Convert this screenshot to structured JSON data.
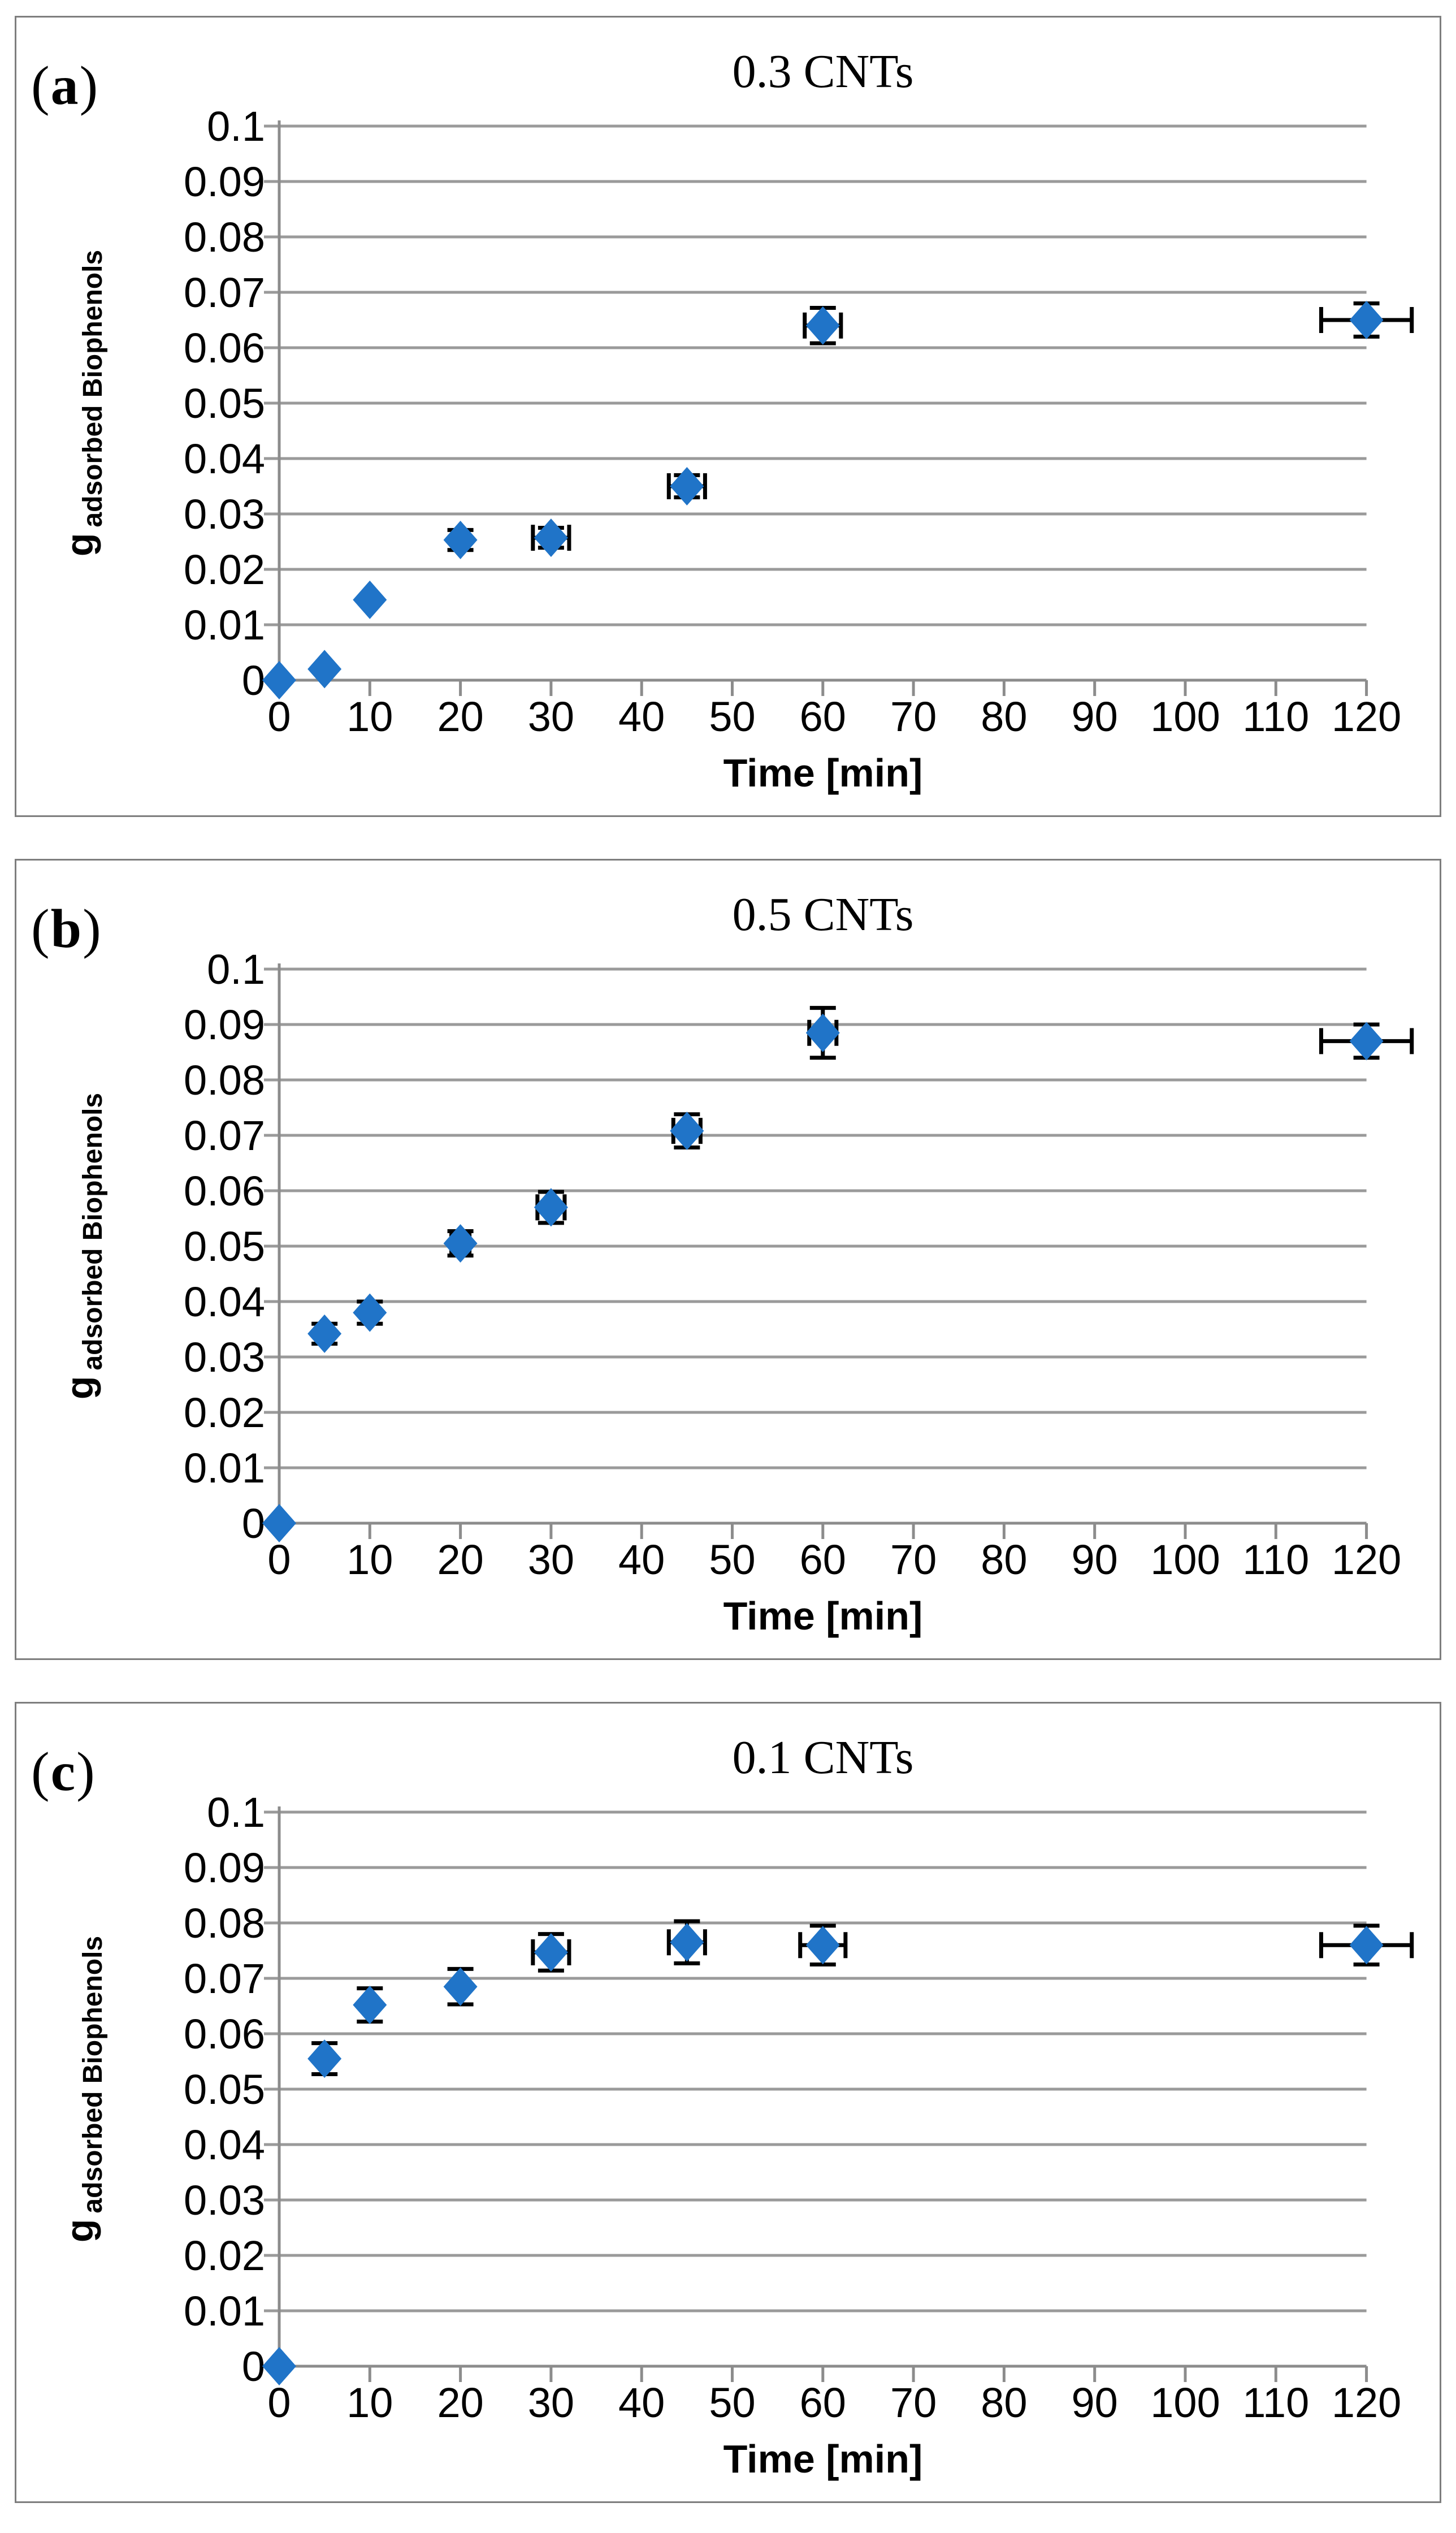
{
  "figure": {
    "panels": [
      {
        "paren_open": "(",
        "letter": "a",
        "paren_close": ")",
        "y_label_main": "g",
        "y_label_sub": "adsorbed Biophenols"
      },
      {
        "paren_open": "(",
        "letter": "b",
        "paren_close": ")",
        "y_label_main": "g",
        "y_label_sub": "adsorbed Biophenols"
      },
      {
        "paren_open": "(",
        "letter": "c",
        "paren_close": ")",
        "y_label_main": "g",
        "y_label_sub": "adsorbed Biophenols"
      }
    ]
  },
  "style": {
    "marker_color": "#2074c8",
    "grid_color": "#9a9a9a",
    "axis_color": "#8c8c8c",
    "error_bar_color": "#000000",
    "panel_border_color": "#7e7e7e",
    "text_color": "#000000"
  },
  "chart_data": [
    {
      "type": "scatter",
      "title": "0.3 CNTs",
      "xlabel": "Time [min]",
      "ylabel": "g adsorbed Biophenols",
      "xlim": [
        0,
        120
      ],
      "ylim": [
        0,
        0.1
      ],
      "grid": true,
      "legend": false,
      "x_ticks": [
        0,
        10,
        20,
        30,
        40,
        50,
        60,
        70,
        80,
        90,
        100,
        110,
        120
      ],
      "y_ticks": [
        0,
        0.01,
        0.02,
        0.03,
        0.04,
        0.05,
        0.06,
        0.07,
        0.08,
        0.09,
        0.1
      ],
      "y_tick_labels": [
        "0",
        "0.01",
        "0.02",
        "0.03",
        "0.04",
        "0.05",
        "0.06",
        "0.07",
        "0.08",
        "0.09",
        "0.1"
      ],
      "points": [
        {
          "x": 0,
          "y": 0,
          "yerr": 0,
          "xerr": 0
        },
        {
          "x": 5,
          "y": 0.002,
          "yerr": 0,
          "xerr": 0
        },
        {
          "x": 10,
          "y": 0.0145,
          "yerr": 0,
          "xerr": 0
        },
        {
          "x": 20,
          "y": 0.0253,
          "yerr": 0.0018,
          "xerr": 0
        },
        {
          "x": 30,
          "y": 0.0257,
          "yerr": 0.0018,
          "xerr": 2
        },
        {
          "x": 45,
          "y": 0.035,
          "yerr": 0.002,
          "xerr": 2
        },
        {
          "x": 60,
          "y": 0.064,
          "yerr": 0.0032,
          "xerr": 2
        },
        {
          "x": 120,
          "y": 0.065,
          "yerr": 0.003,
          "xerr": 5
        }
      ]
    },
    {
      "type": "scatter",
      "title": "0.5 CNTs",
      "xlabel": "Time [min]",
      "ylabel": "g adsorbed Biophenols",
      "xlim": [
        0,
        120
      ],
      "ylim": [
        0,
        0.1
      ],
      "grid": true,
      "legend": false,
      "x_ticks": [
        0,
        10,
        20,
        30,
        40,
        50,
        60,
        70,
        80,
        90,
        100,
        110,
        120
      ],
      "y_ticks": [
        0,
        0.01,
        0.02,
        0.03,
        0.04,
        0.05,
        0.06,
        0.07,
        0.08,
        0.09,
        0.1
      ],
      "y_tick_labels": [
        "0",
        "0.01",
        "0.02",
        "0.03",
        "0.04",
        "0.05",
        "0.06",
        "0.07",
        "0.08",
        "0.09",
        "0.1"
      ],
      "points": [
        {
          "x": 0,
          "y": 0,
          "yerr": 0,
          "xerr": 0
        },
        {
          "x": 5,
          "y": 0.0342,
          "yerr": 0.0018,
          "xerr": 0
        },
        {
          "x": 10,
          "y": 0.038,
          "yerr": 0.002,
          "xerr": 0
        },
        {
          "x": 20,
          "y": 0.0505,
          "yerr": 0.0022,
          "xerr": 1
        },
        {
          "x": 30,
          "y": 0.057,
          "yerr": 0.0028,
          "xerr": 1.5
        },
        {
          "x": 45,
          "y": 0.0708,
          "yerr": 0.003,
          "xerr": 1.5
        },
        {
          "x": 60,
          "y": 0.0885,
          "yerr": 0.0045,
          "xerr": 1.5
        },
        {
          "x": 120,
          "y": 0.087,
          "yerr": 0.003,
          "xerr": 5
        }
      ]
    },
    {
      "type": "scatter",
      "title": "0.1 CNTs",
      "xlabel": "Time [min]",
      "ylabel": "g adsorbed Biophenols",
      "xlim": [
        0,
        120
      ],
      "ylim": [
        0,
        0.1
      ],
      "grid": true,
      "legend": false,
      "x_ticks": [
        0,
        10,
        20,
        30,
        40,
        50,
        60,
        70,
        80,
        90,
        100,
        110,
        120
      ],
      "y_ticks": [
        0,
        0.01,
        0.02,
        0.03,
        0.04,
        0.05,
        0.06,
        0.07,
        0.08,
        0.09,
        0.1
      ],
      "y_tick_labels": [
        "0",
        "0.01",
        "0.02",
        "0.03",
        "0.04",
        "0.05",
        "0.06",
        "0.07",
        "0.08",
        "0.09",
        "0.1"
      ],
      "points": [
        {
          "x": 0,
          "y": 0,
          "yerr": 0,
          "xerr": 0
        },
        {
          "x": 5,
          "y": 0.0555,
          "yerr": 0.0028,
          "xerr": 0
        },
        {
          "x": 10,
          "y": 0.0652,
          "yerr": 0.003,
          "xerr": 0
        },
        {
          "x": 20,
          "y": 0.0685,
          "yerr": 0.0032,
          "xerr": 0
        },
        {
          "x": 30,
          "y": 0.0747,
          "yerr": 0.0033,
          "xerr": 2
        },
        {
          "x": 45,
          "y": 0.0765,
          "yerr": 0.0038,
          "xerr": 2
        },
        {
          "x": 60,
          "y": 0.076,
          "yerr": 0.0035,
          "xerr": 2.5
        },
        {
          "x": 120,
          "y": 0.076,
          "yerr": 0.0035,
          "xerr": 5
        }
      ]
    }
  ]
}
